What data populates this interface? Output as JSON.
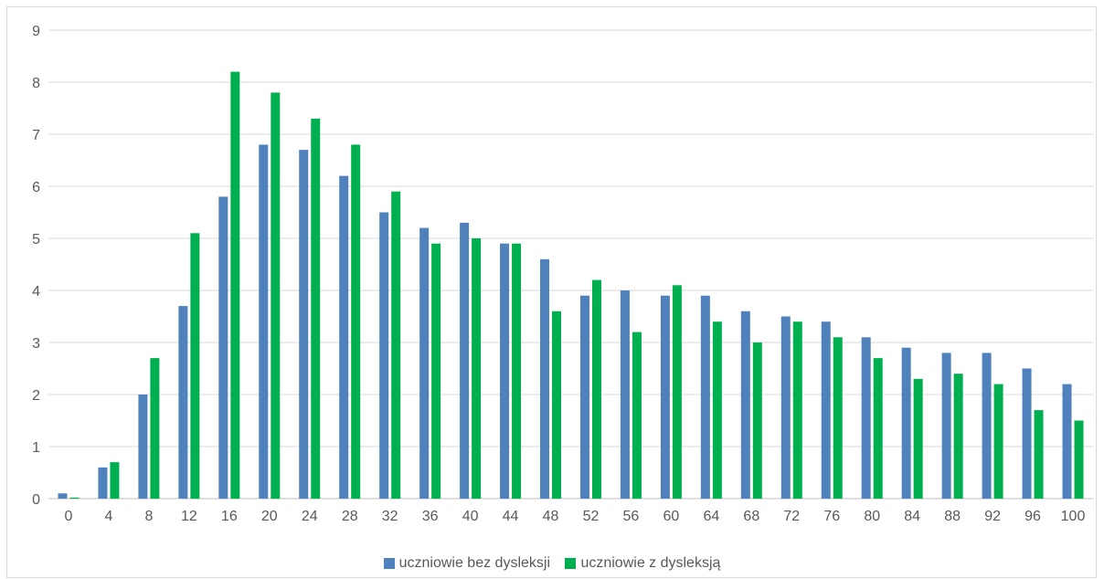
{
  "chart_data": {
    "type": "bar",
    "title": "",
    "xlabel": "",
    "ylabel": "",
    "ylim": [
      0,
      9
    ],
    "yticks": [
      0,
      1,
      2,
      3,
      4,
      5,
      6,
      7,
      8,
      9
    ],
    "grid": true,
    "legend_position": "bottom",
    "categories": [
      "0",
      "4",
      "8",
      "12",
      "16",
      "20",
      "24",
      "28",
      "32",
      "36",
      "40",
      "44",
      "48",
      "52",
      "56",
      "60",
      "64",
      "68",
      "72",
      "76",
      "80",
      "84",
      "88",
      "92",
      "96",
      "100"
    ],
    "series": [
      {
        "name": "uczniowie bez dysleksji",
        "color": "#4f81bd",
        "values": [
          0.1,
          0.6,
          2.0,
          3.7,
          5.8,
          6.8,
          6.7,
          6.2,
          5.5,
          5.2,
          5.3,
          4.9,
          4.6,
          3.9,
          4.0,
          3.9,
          3.9,
          3.6,
          3.5,
          3.4,
          3.1,
          2.9,
          2.8,
          2.8,
          2.5,
          2.2
        ]
      },
      {
        "name": "uczniowie z dysleksją",
        "color": "#00b050",
        "values": [
          0.02,
          0.7,
          2.7,
          5.1,
          8.2,
          7.8,
          7.3,
          6.8,
          5.9,
          4.9,
          5.0,
          4.9,
          3.6,
          4.2,
          3.2,
          4.1,
          3.4,
          3.0,
          3.4,
          3.1,
          2.7,
          2.3,
          2.4,
          2.2,
          1.7,
          1.5
        ]
      }
    ]
  }
}
